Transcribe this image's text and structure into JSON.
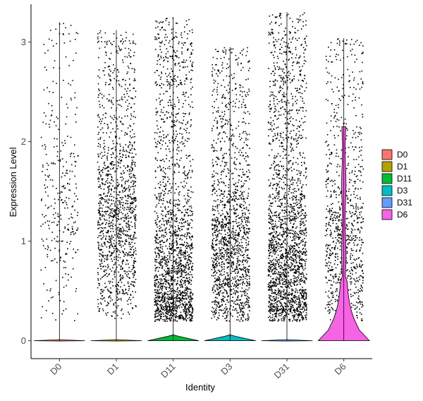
{
  "chart_data": {
    "type": "violin",
    "xlabel": "Identity",
    "ylabel": "Expression Level",
    "ylim": [
      -0.18,
      3.38
    ],
    "yticks": [
      0,
      1,
      2,
      3
    ],
    "categories": [
      "D0",
      "D1",
      "D11",
      "D3",
      "D31",
      "D6"
    ],
    "legend": {
      "placement": "right",
      "entries": [
        "D0",
        "D1",
        "D11",
        "D3",
        "D31",
        "D6"
      ]
    },
    "colors": {
      "D0": "#F8766D",
      "D1": "#B79F00",
      "D11": "#00BA38",
      "D3": "#00BFC4",
      "D31": "#619CFF",
      "D6": "#F564E3"
    },
    "series": [
      {
        "name": "D0",
        "max": 3.2,
        "jitter_points": 320,
        "density_center": 1.3,
        "violin_peak_height": 0.01
      },
      {
        "name": "D1",
        "max": 3.12,
        "jitter_points": 1350,
        "density_center": 1.2,
        "violin_peak_height": 0.01
      },
      {
        "name": "D11",
        "max": 3.25,
        "jitter_points": 1900,
        "density_center": 0.55,
        "violin_peak_height": 0.06
      },
      {
        "name": "D3",
        "max": 2.95,
        "jitter_points": 1500,
        "density_center": 0.9,
        "violin_peak_height": 0.06
      },
      {
        "name": "D31",
        "max": 3.3,
        "jitter_points": 2100,
        "density_center": 0.7,
        "violin_peak_height": 0.01
      },
      {
        "name": "D6",
        "max": 3.04,
        "jitter_points": 900,
        "density_center": 1.0,
        "violin_peak_height": 2.15
      }
    ],
    "grid": false
  }
}
